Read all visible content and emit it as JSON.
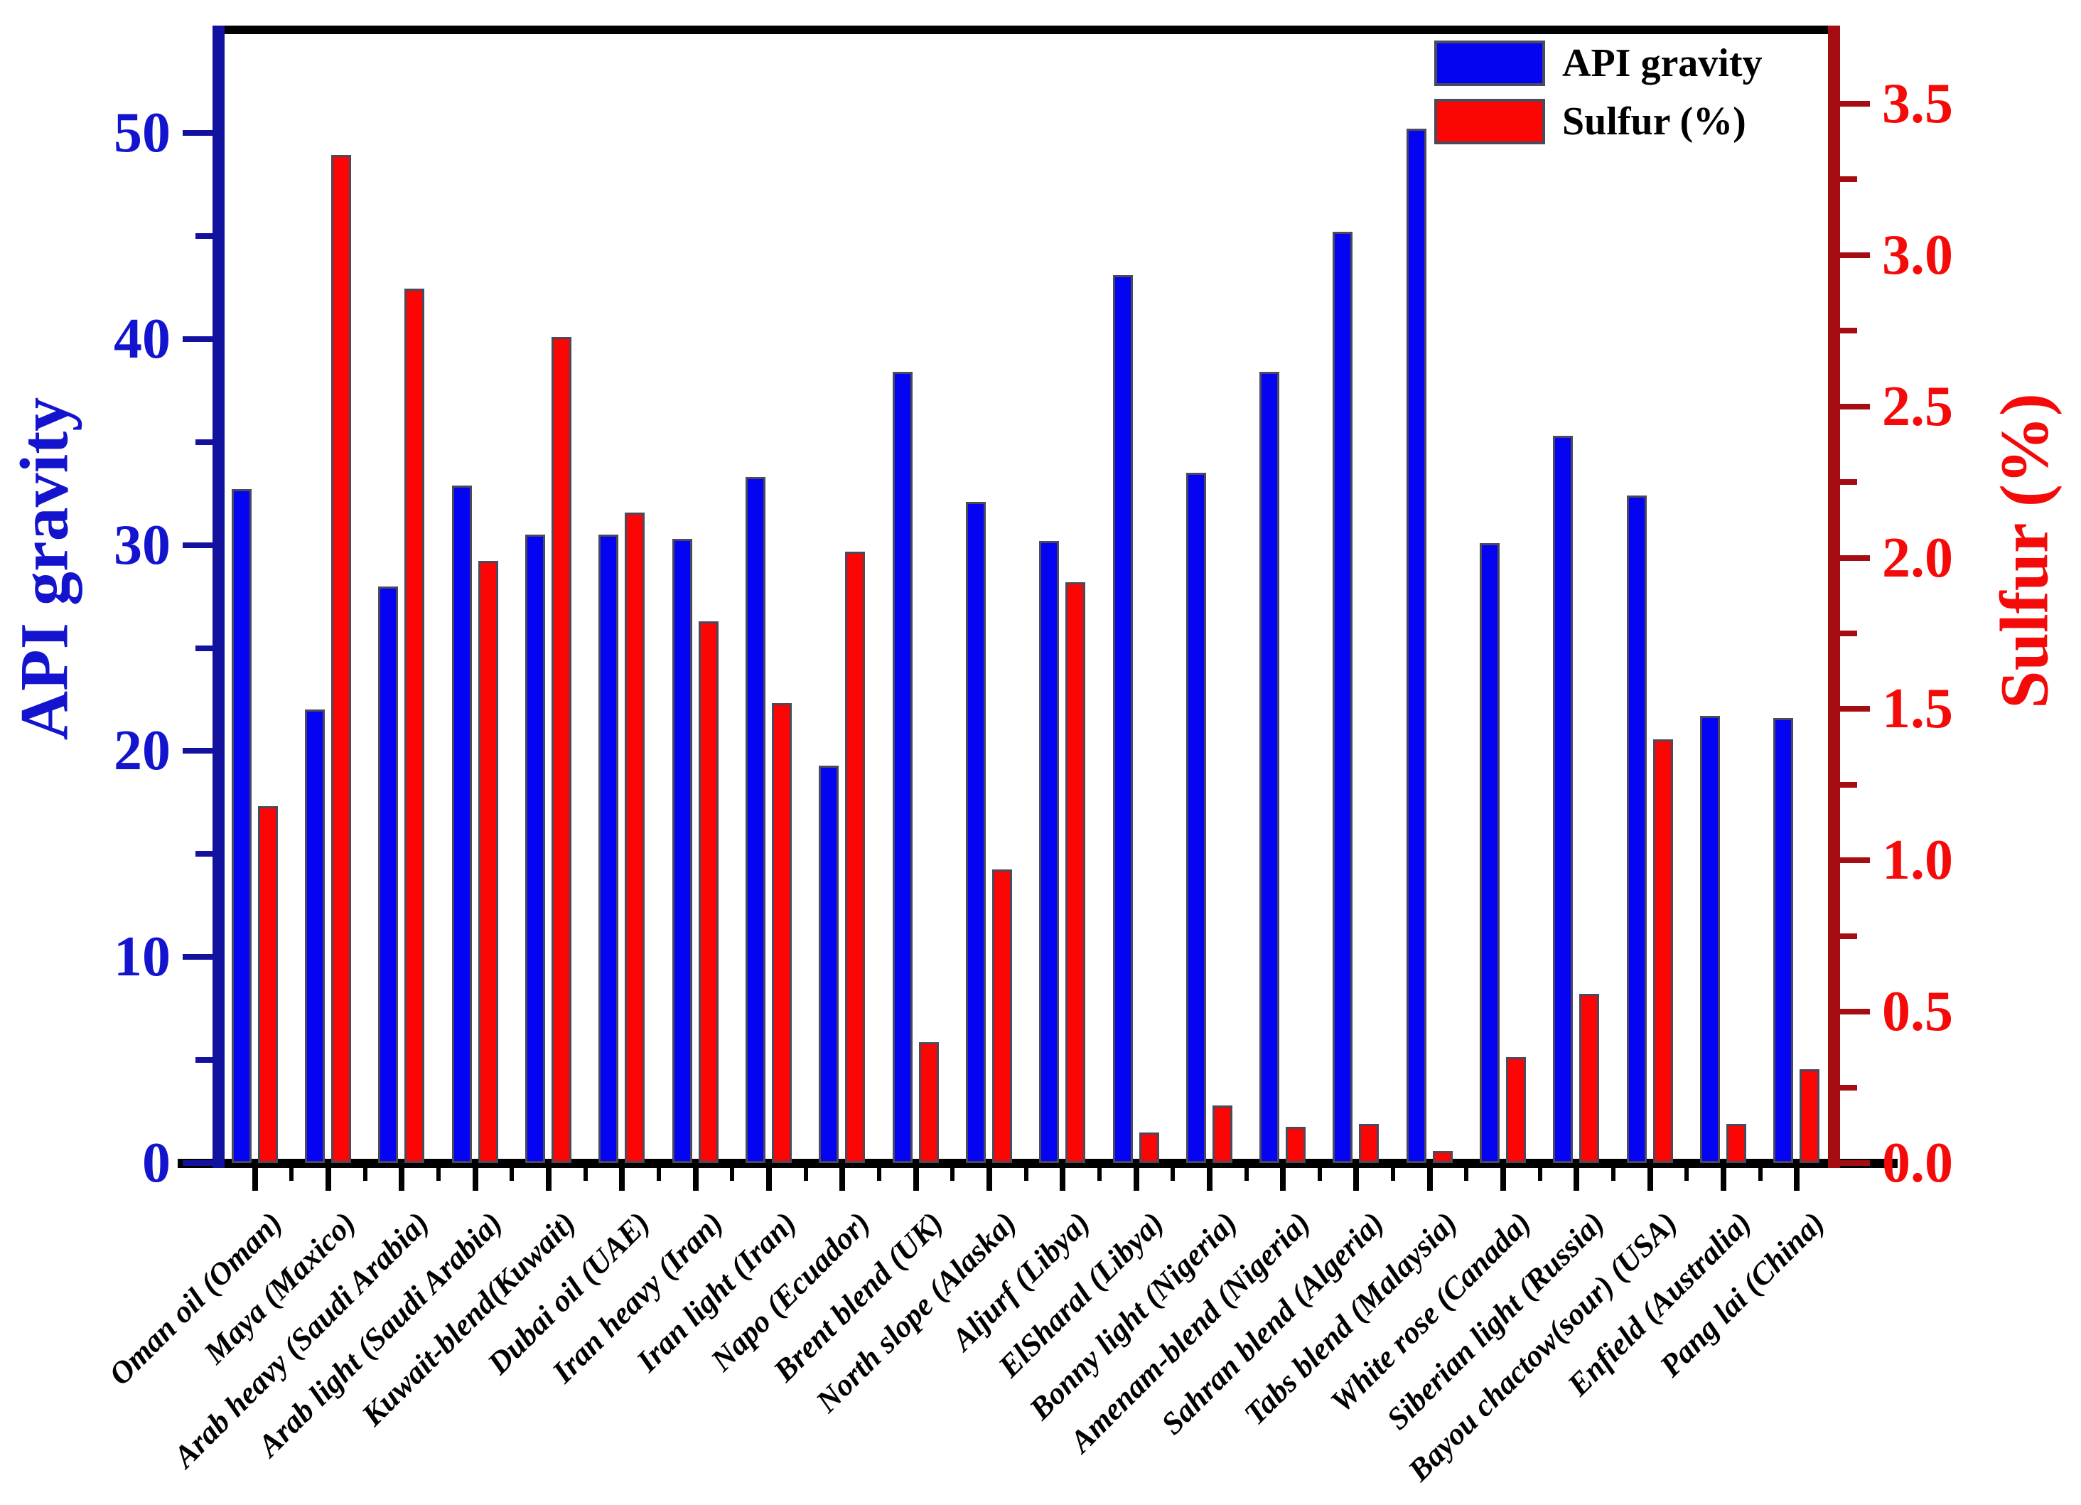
{
  "figure": {
    "background": "#ffffff"
  },
  "legend": {
    "items": [
      {
        "label": "API gravity",
        "color": "#0404f2"
      },
      {
        "label": "Sulfur (%)",
        "color": "#fb0505"
      }
    ]
  },
  "chart_data": {
    "type": "bar",
    "title": "",
    "grid": false,
    "legend_position": "top-right",
    "categories": [
      "Oman oil (Oman)",
      "Maya (Maxico)",
      "Arab heavy (Saudi Arabia)",
      "Arab light (Saudi Arabia)",
      "Kuwait-blend(Kuwait)",
      "Dubai oil (UAE)",
      "Iran heavy (Iran)",
      "Iran light (Iran)",
      "Napo (Ecuador)",
      "Brent blend (UK)",
      "North slope (Alaska)",
      "Aljurf (Libya)",
      "ElSharal (Libya)",
      "Bonny light (Nigeria)",
      "Amenam-blend (Nigeria)",
      "Sahran blend (Algeria)",
      "Tabs blend (Malaysia)",
      "White rose (Canada)",
      "Siberian light (Russia)",
      "Bayou chactow(sour) (USA)",
      "Enfield (Australia)",
      "Pang lai (China)"
    ],
    "series": [
      {
        "name": "API gravity",
        "axis": "left",
        "color": "#0404f2",
        "values": [
          32.7,
          22.0,
          28.0,
          32.9,
          30.5,
          30.5,
          30.3,
          33.3,
          19.3,
          38.4,
          32.1,
          30.2,
          43.1,
          33.5,
          38.4,
          45.2,
          50.2,
          30.1,
          35.3,
          32.4,
          21.7,
          21.6
        ]
      },
      {
        "name": "Sulfur (%)",
        "axis": "right",
        "color": "#fb0505",
        "values": [
          1.18,
          3.33,
          2.89,
          1.99,
          2.73,
          2.15,
          1.79,
          1.52,
          2.02,
          0.4,
          0.97,
          1.92,
          0.1,
          0.19,
          0.12,
          0.13,
          0.04,
          0.35,
          0.56,
          1.4,
          0.13,
          0.31
        ]
      }
    ],
    "left_axis": {
      "label": "API gravity",
      "min": 0,
      "max": 55,
      "major_ticks": [
        0,
        10,
        20,
        30,
        40,
        50
      ],
      "tick_labels": [
        "0",
        "10",
        "20",
        "30",
        "40",
        "50"
      ],
      "minor_ticks": [
        5,
        15,
        25,
        35,
        45
      ],
      "spine_color": "#12129e",
      "text_color": "#1414cf"
    },
    "right_axis": {
      "label": "Sulfur (%)",
      "min": 0,
      "max": 3.744,
      "major_ticks": [
        0,
        0.5,
        1.0,
        1.5,
        2.0,
        2.5,
        3.0,
        3.5
      ],
      "tick_labels": [
        "0.0",
        "0.5",
        "1.0",
        "1.5",
        "2.0",
        "2.5",
        "3.0",
        "3.5"
      ],
      "minor_ticks": [
        0.25,
        0.75,
        1.25,
        1.75,
        2.25,
        2.75,
        3.25
      ],
      "spine_color": "#a60d12",
      "text_color": "#f50a0a"
    }
  }
}
